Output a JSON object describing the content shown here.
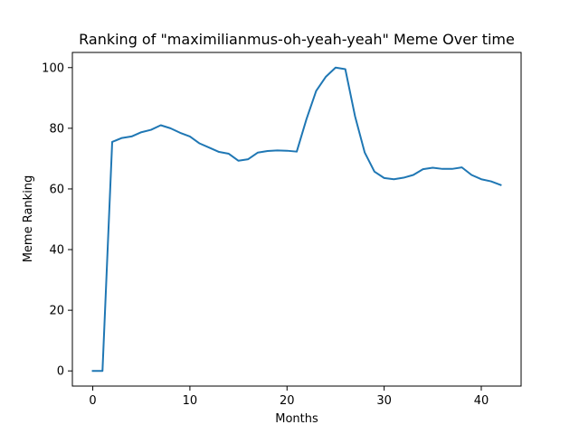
{
  "chart_data": {
    "type": "line",
    "title": "Ranking of \"maximilianmus-oh-yeah-yeah\" Meme Over time",
    "xlabel": "Months",
    "ylabel": "Meme Ranking",
    "xlim": [
      -2.1,
      44.1
    ],
    "ylim": [
      -5,
      105
    ],
    "xticks": [
      0,
      10,
      20,
      30,
      40
    ],
    "yticks": [
      0,
      20,
      40,
      60,
      80,
      100
    ],
    "grid": false,
    "colors": {
      "line": "#1f77b4",
      "axis": "#000000"
    },
    "series": [
      {
        "x": [
          0,
          1,
          2,
          3,
          4,
          5,
          6,
          7,
          8,
          9,
          10,
          11,
          12,
          13,
          14,
          15,
          16,
          17,
          18,
          19,
          20,
          21,
          22,
          23,
          24,
          25,
          26,
          27,
          28,
          29,
          30,
          31,
          32,
          33,
          34,
          35,
          36,
          37,
          38,
          39,
          40,
          41,
          42
        ],
        "values": [
          0,
          0,
          75.5,
          76.8,
          77.3,
          78.7,
          79.5,
          81,
          80,
          78.5,
          77.3,
          75,
          73.6,
          72.2,
          71.6,
          69.3,
          69.8,
          72,
          72.5,
          72.7,
          72.6,
          72.3,
          83,
          92.3,
          97,
          100,
          99.5,
          84,
          72,
          65.7,
          63.6,
          63.2,
          63.7,
          64.6,
          66.5,
          67,
          66.6,
          66.6,
          67.1,
          64.6,
          63.2,
          62.5,
          61.3
        ]
      }
    ]
  }
}
